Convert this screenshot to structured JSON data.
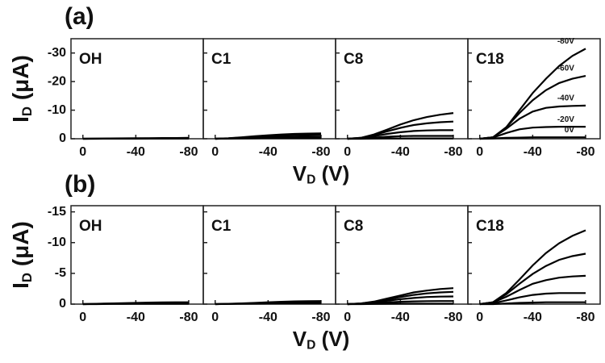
{
  "rows": [
    {
      "label": "(a)",
      "ylabel": {
        "symbol": "I",
        "subscript": "D",
        "unit": " (μA)"
      },
      "xlabel": {
        "symbol": "V",
        "subscript": "D",
        "unit": " (V)"
      }
    },
    {
      "label": "(b)",
      "ylabel": {
        "symbol": "I",
        "subscript": "D",
        "unit": " (μA)"
      },
      "xlabel": {
        "symbol": "V",
        "subscript": "D",
        "unit": " (V)"
      }
    }
  ],
  "chart_data": [
    {
      "type": "line",
      "title": "OH",
      "color": "#000000",
      "x": [
        0,
        -10,
        -20,
        -30,
        -40,
        -50,
        -60,
        -70,
        -80
      ],
      "xlim": [
        9,
        -91
      ],
      "xticks": [
        0,
        -40,
        -80
      ],
      "ylim": [
        0,
        -35
      ],
      "yticks": [
        0,
        -10,
        -20,
        -30
      ],
      "series": [
        {
          "values": [
            0,
            -0.05,
            -0.1,
            -0.15,
            -0.2,
            -0.2,
            -0.25,
            -0.25,
            -0.3
          ]
        },
        {
          "values": [
            0,
            -0.03,
            -0.06,
            -0.1,
            -0.12,
            -0.14,
            -0.15,
            -0.16,
            -0.17
          ]
        },
        {
          "values": [
            0,
            0,
            -0.02,
            -0.03,
            -0.04,
            -0.05,
            -0.05,
            -0.05,
            -0.05
          ]
        }
      ]
    },
    {
      "type": "line",
      "title": "C1",
      "color": "#000000",
      "x": [
        0,
        -10,
        -20,
        -30,
        -40,
        -50,
        -60,
        -70,
        -80
      ],
      "xlim": [
        9,
        -91
      ],
      "xticks": [
        0,
        -40,
        -80
      ],
      "ylim": [
        0,
        -35
      ],
      "yticks": [
        0,
        -10,
        -20,
        -30
      ],
      "series": [
        {
          "values": [
            0,
            -0.2,
            -0.5,
            -0.9,
            -1.2,
            -1.5,
            -1.7,
            -1.8,
            -1.9
          ]
        },
        {
          "values": [
            0,
            -0.15,
            -0.4,
            -0.7,
            -0.9,
            -1.1,
            -1.2,
            -1.3,
            -1.35
          ]
        },
        {
          "values": [
            0,
            -0.1,
            -0.25,
            -0.4,
            -0.5,
            -0.6,
            -0.65,
            -0.7,
            -0.7
          ]
        },
        {
          "values": [
            0,
            -0.05,
            -0.1,
            -0.15,
            -0.2,
            -0.2,
            -0.2,
            -0.2,
            -0.2
          ]
        }
      ]
    },
    {
      "type": "line",
      "title": "C8",
      "color": "#000000",
      "x": [
        0,
        -10,
        -20,
        -30,
        -40,
        -50,
        -60,
        -70,
        -80
      ],
      "xlim": [
        9,
        -91
      ],
      "xticks": [
        0,
        -40,
        -80
      ],
      "ylim": [
        0,
        -35
      ],
      "yticks": [
        0,
        -10,
        -20,
        -30
      ],
      "series": [
        {
          "values": [
            0,
            -0.3,
            -1.5,
            -3.2,
            -5,
            -6.5,
            -7.6,
            -8.4,
            -9
          ]
        },
        {
          "values": [
            0,
            -0.3,
            -1.3,
            -2.6,
            -3.8,
            -4.8,
            -5.4,
            -5.8,
            -6
          ]
        },
        {
          "values": [
            0,
            -0.2,
            -0.9,
            -1.7,
            -2.3,
            -2.7,
            -2.9,
            -3,
            -3
          ]
        },
        {
          "values": [
            0,
            -0.1,
            -0.4,
            -0.7,
            -0.9,
            -1,
            -1,
            -1,
            -1
          ]
        },
        {
          "values": [
            0,
            0,
            -0.05,
            -0.1,
            -0.1,
            -0.1,
            -0.1,
            -0.1,
            -0.1
          ]
        }
      ]
    },
    {
      "type": "line",
      "title": "C18",
      "color": "#000000",
      "x": [
        0,
        -10,
        -20,
        -30,
        -40,
        -50,
        -60,
        -70,
        -80
      ],
      "xlim": [
        9,
        -91
      ],
      "xticks": [
        0,
        -40,
        -80
      ],
      "ylim": [
        0,
        -35
      ],
      "yticks": [
        0,
        -10,
        -20,
        -30
      ],
      "series": [
        {
          "name": "-80V",
          "values": [
            0,
            -0.5,
            -4,
            -10,
            -16,
            -21,
            -25.5,
            -29,
            -31.5
          ]
        },
        {
          "name": "-60V",
          "values": [
            0,
            -0.5,
            -4,
            -9,
            -13.5,
            -17,
            -19.5,
            -21,
            -22
          ]
        },
        {
          "name": "-40V",
          "values": [
            0,
            -0.5,
            -3.5,
            -7,
            -9.5,
            -10.8,
            -11.3,
            -11.5,
            -11.6
          ]
        },
        {
          "name": "-20V",
          "values": [
            0,
            -0.4,
            -2,
            -3.3,
            -3.9,
            -4.1,
            -4.2,
            -4.2,
            -4.2
          ]
        },
        {
          "name": "0V",
          "values": [
            0,
            -0.1,
            -0.3,
            -0.4,
            -0.5,
            -0.5,
            -0.5,
            -0.5,
            -0.5
          ]
        }
      ]
    },
    {
      "type": "line",
      "title": "OH",
      "color": "#000000",
      "x": [
        0,
        -10,
        -20,
        -30,
        -40,
        -50,
        -60,
        -70,
        -80
      ],
      "xlim": [
        9,
        -91
      ],
      "xticks": [
        0,
        -40,
        -80
      ],
      "ylim": [
        0,
        -16
      ],
      "yticks": [
        0,
        -5,
        -10,
        -15
      ],
      "series": [
        {
          "values": [
            0,
            -0.05,
            -0.1,
            -0.15,
            -0.2,
            -0.25,
            -0.28,
            -0.3,
            -0.3
          ]
        },
        {
          "values": [
            0,
            -0.03,
            -0.06,
            -0.09,
            -0.12,
            -0.14,
            -0.15,
            -0.16,
            -0.16
          ]
        },
        {
          "values": [
            0,
            0,
            -0.02,
            -0.03,
            -0.04,
            -0.05,
            -0.05,
            -0.05,
            -0.05
          ]
        }
      ]
    },
    {
      "type": "line",
      "title": "C1",
      "color": "#000000",
      "x": [
        0,
        -10,
        -20,
        -30,
        -40,
        -50,
        -60,
        -70,
        -80
      ],
      "xlim": [
        9,
        -91
      ],
      "xticks": [
        0,
        -40,
        -80
      ],
      "ylim": [
        0,
        -16
      ],
      "yticks": [
        0,
        -5,
        -10,
        -15
      ],
      "series": [
        {
          "values": [
            0,
            -0.05,
            -0.12,
            -0.2,
            -0.3,
            -0.38,
            -0.44,
            -0.48,
            -0.5
          ]
        },
        {
          "values": [
            0,
            -0.04,
            -0.09,
            -0.15,
            -0.2,
            -0.25,
            -0.28,
            -0.3,
            -0.3
          ]
        },
        {
          "values": [
            0,
            -0.02,
            -0.04,
            -0.06,
            -0.08,
            -0.1,
            -0.1,
            -0.1,
            -0.1
          ]
        }
      ]
    },
    {
      "type": "line",
      "title": "C8",
      "color": "#000000",
      "x": [
        0,
        -10,
        -20,
        -30,
        -40,
        -50,
        -60,
        -70,
        -80
      ],
      "xlim": [
        9,
        -91
      ],
      "xticks": [
        0,
        -40,
        -80
      ],
      "ylim": [
        0,
        -16
      ],
      "yticks": [
        0,
        -5,
        -10,
        -15
      ],
      "series": [
        {
          "values": [
            0,
            -0.1,
            -0.4,
            -0.9,
            -1.4,
            -1.9,
            -2.2,
            -2.45,
            -2.6
          ]
        },
        {
          "values": [
            0,
            -0.1,
            -0.35,
            -0.75,
            -1.15,
            -1.5,
            -1.75,
            -1.9,
            -2
          ]
        },
        {
          "values": [
            0,
            -0.08,
            -0.28,
            -0.55,
            -0.8,
            -1,
            -1.15,
            -1.22,
            -1.25
          ]
        },
        {
          "values": [
            0,
            -0.05,
            -0.15,
            -0.28,
            -0.38,
            -0.45,
            -0.48,
            -0.5,
            -0.5
          ]
        },
        {
          "values": [
            0,
            0,
            -0.03,
            -0.05,
            -0.06,
            -0.07,
            -0.07,
            -0.07,
            -0.07
          ]
        }
      ]
    },
    {
      "type": "line",
      "title": "C18",
      "color": "#000000",
      "x": [
        0,
        -10,
        -20,
        -30,
        -40,
        -50,
        -60,
        -70,
        -80
      ],
      "xlim": [
        9,
        -91
      ],
      "xticks": [
        0,
        -40,
        -80
      ],
      "ylim": [
        0,
        -16
      ],
      "yticks": [
        0,
        -5,
        -10,
        -15
      ],
      "series": [
        {
          "values": [
            0,
            -0.3,
            -1.8,
            -4,
            -6.3,
            -8.3,
            -9.9,
            -11.1,
            -12
          ]
        },
        {
          "values": [
            0,
            -0.3,
            -1.6,
            -3.3,
            -4.9,
            -6.2,
            -7.2,
            -7.8,
            -8.2
          ]
        },
        {
          "values": [
            0,
            -0.25,
            -1.2,
            -2.3,
            -3.3,
            -3.9,
            -4.3,
            -4.5,
            -4.6
          ]
        },
        {
          "values": [
            0,
            -0.15,
            -0.6,
            -1.1,
            -1.5,
            -1.7,
            -1.8,
            -1.8,
            -1.8
          ]
        },
        {
          "values": [
            0,
            0,
            -0.1,
            -0.2,
            -0.25,
            -0.3,
            -0.3,
            -0.3,
            -0.3
          ]
        }
      ]
    }
  ]
}
